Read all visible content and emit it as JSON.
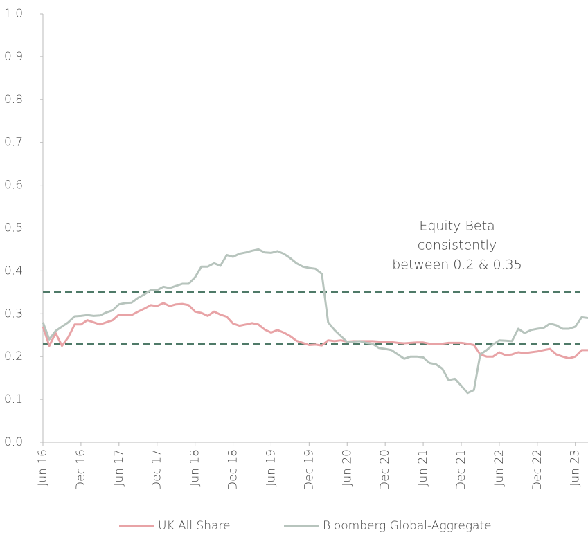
{
  "chart_data": {
    "type": "line",
    "categories": [
      "Jun 16",
      null,
      null,
      null,
      null,
      null,
      "Dec 16",
      null,
      null,
      null,
      null,
      null,
      "Jun 17",
      null,
      null,
      null,
      null,
      null,
      "Dec 17",
      null,
      null,
      null,
      null,
      null,
      "Jun 18",
      null,
      null,
      null,
      null,
      null,
      "Dec 18",
      null,
      null,
      null,
      null,
      null,
      "Jun 19",
      null,
      null,
      null,
      null,
      null,
      "Dec 19",
      null,
      null,
      null,
      null,
      null,
      "Jun 20",
      null,
      null,
      null,
      null,
      null,
      "Dec 20",
      null,
      null,
      null,
      null,
      null,
      "Jun 21",
      null,
      null,
      null,
      null,
      null,
      "Dec 21",
      null,
      null,
      null,
      null,
      null,
      "Jun 22",
      null,
      null,
      null,
      null,
      null,
      "Dec 22",
      null,
      null,
      null,
      null,
      null,
      "Jun 23",
      null,
      null
    ],
    "series": [
      {
        "name": "UK All Share",
        "color": "#e8a3a6",
        "values": [
          0.27,
          0.225,
          0.255,
          0.225,
          0.245,
          0.275,
          0.275,
          0.285,
          0.28,
          0.275,
          0.28,
          0.285,
          0.298,
          0.298,
          0.297,
          0.305,
          0.312,
          0.32,
          0.318,
          0.325,
          0.318,
          0.322,
          0.323,
          0.32,
          0.305,
          0.302,
          0.295,
          0.305,
          0.298,
          0.293,
          0.277,
          0.272,
          0.275,
          0.278,
          0.275,
          0.263,
          0.256,
          0.262,
          0.256,
          0.248,
          0.237,
          0.232,
          0.227,
          0.228,
          0.226,
          0.238,
          0.236,
          0.238,
          0.235,
          0.236,
          0.236,
          0.236,
          0.236,
          0.235,
          0.235,
          0.234,
          0.232,
          0.231,
          0.232,
          0.233,
          0.233,
          0.23,
          0.23,
          0.23,
          0.232,
          0.232,
          0.232,
          0.23,
          0.227,
          0.205,
          0.2,
          0.2,
          0.21,
          0.203,
          0.205,
          0.21,
          0.208,
          0.21,
          0.212,
          0.215,
          0.218,
          0.205,
          0.2,
          0.196,
          0.2,
          0.215,
          0.215
        ]
      },
      {
        "name": "Bloomberg Global-Aggregate",
        "color": "#b7c4bd",
        "values": [
          0.28,
          0.24,
          0.26,
          0.27,
          0.28,
          0.294,
          0.295,
          0.297,
          0.295,
          0.296,
          0.303,
          0.308,
          0.322,
          0.325,
          0.326,
          0.337,
          0.345,
          0.355,
          0.355,
          0.363,
          0.36,
          0.365,
          0.37,
          0.37,
          0.385,
          0.41,
          0.41,
          0.418,
          0.412,
          0.437,
          0.433,
          0.44,
          0.443,
          0.447,
          0.45,
          0.443,
          0.442,
          0.446,
          0.44,
          0.43,
          0.418,
          0.41,
          0.407,
          0.405,
          0.393,
          0.28,
          0.262,
          0.248,
          0.234,
          0.235,
          0.236,
          0.232,
          0.23,
          0.22,
          0.218,
          0.215,
          0.205,
          0.195,
          0.2,
          0.2,
          0.198,
          0.185,
          0.182,
          0.172,
          0.145,
          0.148,
          0.132,
          0.115,
          0.122,
          0.205,
          0.215,
          0.228,
          0.238,
          0.237,
          0.236,
          0.265,
          0.255,
          0.262,
          0.265,
          0.267,
          0.277,
          0.273,
          0.265,
          0.265,
          0.27,
          0.292,
          0.29
        ]
      }
    ],
    "ylim": [
      0,
      1
    ],
    "yticks": [
      {
        "value": 0,
        "label": "0.0"
      },
      0.1,
      0.2,
      0.3,
      0.4,
      0.5,
      0.6,
      0.7,
      0.8,
      0.9,
      {
        "value": 1,
        "label": "1.0"
      }
    ],
    "reference_lines": [
      0.35,
      0.23
    ],
    "reference_color": "#4f7a68",
    "annotation": [
      "Equity Beta",
      "consistently",
      "between 0.2 & 0.35"
    ],
    "legend": "bottom"
  }
}
